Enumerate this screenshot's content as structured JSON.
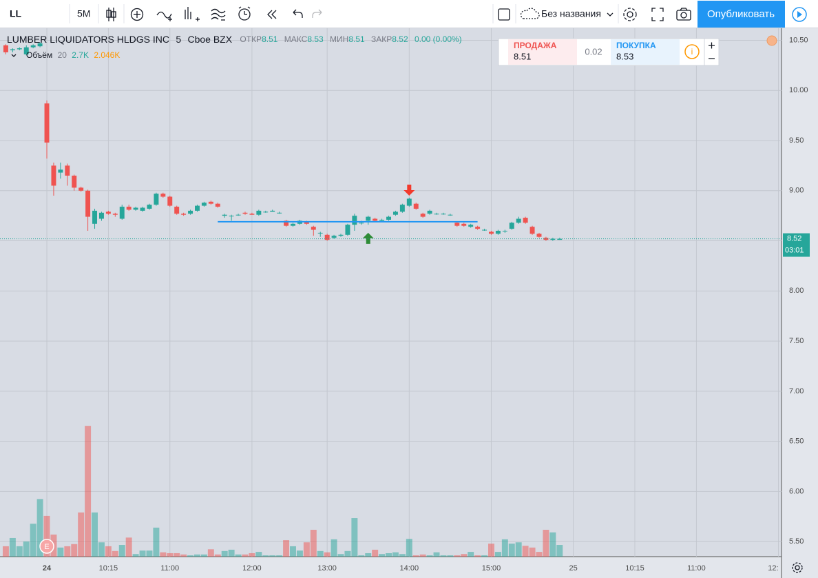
{
  "toolbar": {
    "symbol": "LL",
    "interval": "5М",
    "layout_name": "Без названия",
    "publish": "Опубликовать"
  },
  "legend": {
    "name": "LUMBER LIQUIDATORS HLDGS INC",
    "interval": "5",
    "exchange": "Cboe BZX",
    "open_label": "ОТКР",
    "open": "8.51",
    "high_label": "МАКС",
    "high": "8.53",
    "low_label": "МИН",
    "low": "8.51",
    "close_label": "ЗАКР",
    "close": "8.52",
    "change": "0.00 (0.00%)",
    "volume_label": "Объём",
    "volume_length": "20",
    "volume": "2.7K",
    "volume_ma": "2.046K"
  },
  "trade": {
    "sell_label": "ПРОДАЖА",
    "sell": "8.51",
    "spread": "0.02",
    "buy_label": "ПОКУПКА",
    "buy": "8.53"
  },
  "countdown": "03:01",
  "earnings": "E",
  "chart_data": {
    "type": "candlestick",
    "x": [
      -6,
      -5,
      -4,
      -3,
      -2,
      -1,
      0,
      1,
      2,
      3,
      4,
      5,
      6,
      7,
      8,
      9,
      10,
      11,
      12,
      13,
      14,
      15,
      16,
      17,
      18,
      19,
      20,
      21,
      22,
      23,
      24,
      25,
      26,
      27,
      28,
      29,
      30,
      31,
      32,
      33,
      34,
      35,
      36,
      37,
      38,
      39,
      40,
      41,
      42,
      43,
      44,
      45,
      46,
      47,
      48,
      49,
      50,
      51,
      52,
      53,
      54,
      55,
      56,
      57,
      58,
      59,
      60,
      61,
      62,
      63,
      64,
      65,
      66,
      67,
      68,
      69,
      70,
      71,
      72,
      73,
      74,
      75
    ],
    "open": [
      10.45,
      10.4,
      10.41,
      10.36,
      10.43,
      10.44,
      9.87,
      9.25,
      9.18,
      9.25,
      9.15,
      9.03,
      9.0,
      8.67,
      8.72,
      8.79,
      8.77,
      8.72,
      8.84,
      8.81,
      8.8,
      8.82,
      8.86,
      8.97,
      8.94,
      8.84,
      8.77,
      8.77,
      8.8,
      8.85,
      8.89,
      8.87,
      8.75,
      8.75,
      8.76,
      8.78,
      8.77,
      8.76,
      8.79,
      8.79,
      8.78,
      8.7,
      8.65,
      8.67,
      8.69,
      8.64,
      8.58,
      8.56,
      8.53,
      8.55,
      8.56,
      8.66,
      8.68,
      8.7,
      8.72,
      8.7,
      8.71,
      8.76,
      8.79,
      8.85,
      8.87,
      8.77,
      8.77,
      8.77,
      8.77,
      8.76,
      8.68,
      8.67,
      8.64,
      8.64,
      8.61,
      8.59,
      8.57,
      8.6,
      8.62,
      8.68,
      8.73,
      8.64,
      8.57,
      8.53,
      8.51,
      8.51
    ],
    "high": [
      10.46,
      10.42,
      10.43,
      10.45,
      10.46,
      10.48,
      9.9,
      9.28,
      9.28,
      9.27,
      9.16,
      9.04,
      9.01,
      8.82,
      8.79,
      8.8,
      8.78,
      8.86,
      8.86,
      8.84,
      8.84,
      8.87,
      8.98,
      8.98,
      8.95,
      8.85,
      8.78,
      8.81,
      8.86,
      8.89,
      8.9,
      8.88,
      8.77,
      8.76,
      8.77,
      8.79,
      8.78,
      8.81,
      8.8,
      8.81,
      8.79,
      8.71,
      8.68,
      8.71,
      8.7,
      8.65,
      8.59,
      8.57,
      8.56,
      8.57,
      8.67,
      8.77,
      8.7,
      8.75,
      8.73,
      8.72,
      8.75,
      8.8,
      8.87,
      8.93,
      8.88,
      8.78,
      8.81,
      8.78,
      8.78,
      8.77,
      8.69,
      8.68,
      8.67,
      8.65,
      8.62,
      8.6,
      8.61,
      8.61,
      8.69,
      8.74,
      8.74,
      8.65,
      8.58,
      8.54,
      8.53,
      8.53
    ],
    "low": [
      10.36,
      10.38,
      10.4,
      10.35,
      10.42,
      10.43,
      9.32,
      8.95,
      9.12,
      9.05,
      9.0,
      8.99,
      8.6,
      8.62,
      8.7,
      8.76,
      8.74,
      8.71,
      8.8,
      8.8,
      8.79,
      8.81,
      8.85,
      8.93,
      8.84,
      8.76,
      8.75,
      8.76,
      8.79,
      8.84,
      8.86,
      8.83,
      8.73,
      8.7,
      8.75,
      8.76,
      8.76,
      8.75,
      8.78,
      8.79,
      8.77,
      8.64,
      8.64,
      8.66,
      8.66,
      8.55,
      8.54,
      8.5,
      8.52,
      8.54,
      8.55,
      8.6,
      8.66,
      8.66,
      8.69,
      8.69,
      8.7,
      8.75,
      8.78,
      8.84,
      8.81,
      8.73,
      8.76,
      8.76,
      8.76,
      8.75,
      8.64,
      8.64,
      8.63,
      8.61,
      8.6,
      8.56,
      8.56,
      8.58,
      8.61,
      8.67,
      8.67,
      8.56,
      8.53,
      8.5,
      8.5,
      8.51
    ],
    "close": [
      10.38,
      10.41,
      10.42,
      10.43,
      10.45,
      10.47,
      9.48,
      9.05,
      9.21,
      9.15,
      9.03,
      9.0,
      8.74,
      8.8,
      8.78,
      8.77,
      8.76,
      8.84,
      8.81,
      8.83,
      8.83,
      8.86,
      8.97,
      8.94,
      8.85,
      8.77,
      8.76,
      8.8,
      8.85,
      8.88,
      8.87,
      8.84,
      8.76,
      8.75,
      8.76,
      8.77,
      8.76,
      8.8,
      8.79,
      8.8,
      8.78,
      8.65,
      8.67,
      8.7,
      8.67,
      8.61,
      8.58,
      8.51,
      8.55,
      8.56,
      8.66,
      8.75,
      8.68,
      8.74,
      8.7,
      8.71,
      8.74,
      8.79,
      8.86,
      8.92,
      8.82,
      8.74,
      8.8,
      8.77,
      8.77,
      8.76,
      8.65,
      8.65,
      8.66,
      8.62,
      8.61,
      8.57,
      8.6,
      8.6,
      8.68,
      8.72,
      8.68,
      8.57,
      8.54,
      8.51,
      8.52,
      8.52
    ],
    "volume": [
      2.4,
      4.3,
      2.4,
      3.5,
      7.6,
      13.3,
      9.4,
      5.1,
      2.1,
      2.4,
      2.9,
      10.2,
      30.2,
      10.2,
      3.3,
      2.4,
      1.3,
      2.7,
      4.4,
      0.6,
      1.4,
      1.4,
      6.7,
      1.0,
      0.8,
      0.8,
      0.5,
      0.3,
      0.5,
      0.5,
      1.7,
      0.5,
      1.3,
      1.6,
      0.5,
      0.5,
      0.8,
      1.1,
      0.3,
      0.3,
      0.3,
      3.8,
      2.4,
      1.4,
      3.3,
      6.2,
      1.3,
      1.0,
      4.0,
      0.6,
      1.3,
      8.9,
      0.3,
      0.8,
      1.6,
      0.6,
      0.8,
      1.0,
      0.6,
      4.1,
      0.3,
      0.5,
      0.3,
      1.0,
      0.3,
      0.3,
      0.3,
      0.6,
      1.1,
      0.3,
      0.3,
      3.0,
      1.1,
      4.0,
      3.0,
      3.3,
      2.5,
      2.1,
      1.1,
      6.2,
      5.6,
      2.7
    ],
    "up_color": "#26a69a",
    "down_color": "#ef5350",
    "xlim": [
      -6.85,
      107.45
    ],
    "ylim": [
      5.35,
      10.62
    ],
    "volume_ylim": [
      0,
      122
    ],
    "xticks": [
      {
        "value": 0,
        "label": "24"
      },
      {
        "value": 9,
        "label": "10:15"
      },
      {
        "value": 18,
        "label": "11:00"
      },
      {
        "value": 30,
        "label": "12:00"
      },
      {
        "value": 41,
        "label": "13:00"
      },
      {
        "value": 53,
        "label": "14:00"
      },
      {
        "value": 65,
        "label": "15:00"
      },
      {
        "value": 77,
        "label": "25"
      },
      {
        "value": 86,
        "label": "10:15"
      },
      {
        "value": 95,
        "label": "11:00"
      },
      {
        "value": 107,
        "label": "12:"
      }
    ],
    "yticks": [
      {
        "value": 5.5,
        "label": "5.50"
      },
      {
        "value": 6,
        "label": "6.00"
      },
      {
        "value": 6.5,
        "label": "6.50"
      },
      {
        "value": 7,
        "label": "7.00"
      },
      {
        "value": 7.5,
        "label": "7.50"
      },
      {
        "value": 8,
        "label": "8.00"
      },
      {
        "value": 8.5,
        "label": "8.50"
      },
      {
        "value": 9,
        "label": "9.00"
      },
      {
        "value": 9.5,
        "label": "9.50"
      },
      {
        "value": 10,
        "label": "10.00"
      },
      {
        "value": 10.5,
        "label": "10.50"
      }
    ],
    "grid": true,
    "last_price_line": true,
    "trend_line": {
      "x": [
        25,
        63
      ],
      "y": [
        8.69,
        8.69
      ],
      "color": "#2196f3"
    },
    "markers": [
      {
        "x": 53,
        "y": 8.95,
        "direction": "down",
        "color": "#f23a2c"
      },
      {
        "x": 47,
        "y": 8.58,
        "direction": "up",
        "color": "#2e8b36"
      }
    ]
  }
}
